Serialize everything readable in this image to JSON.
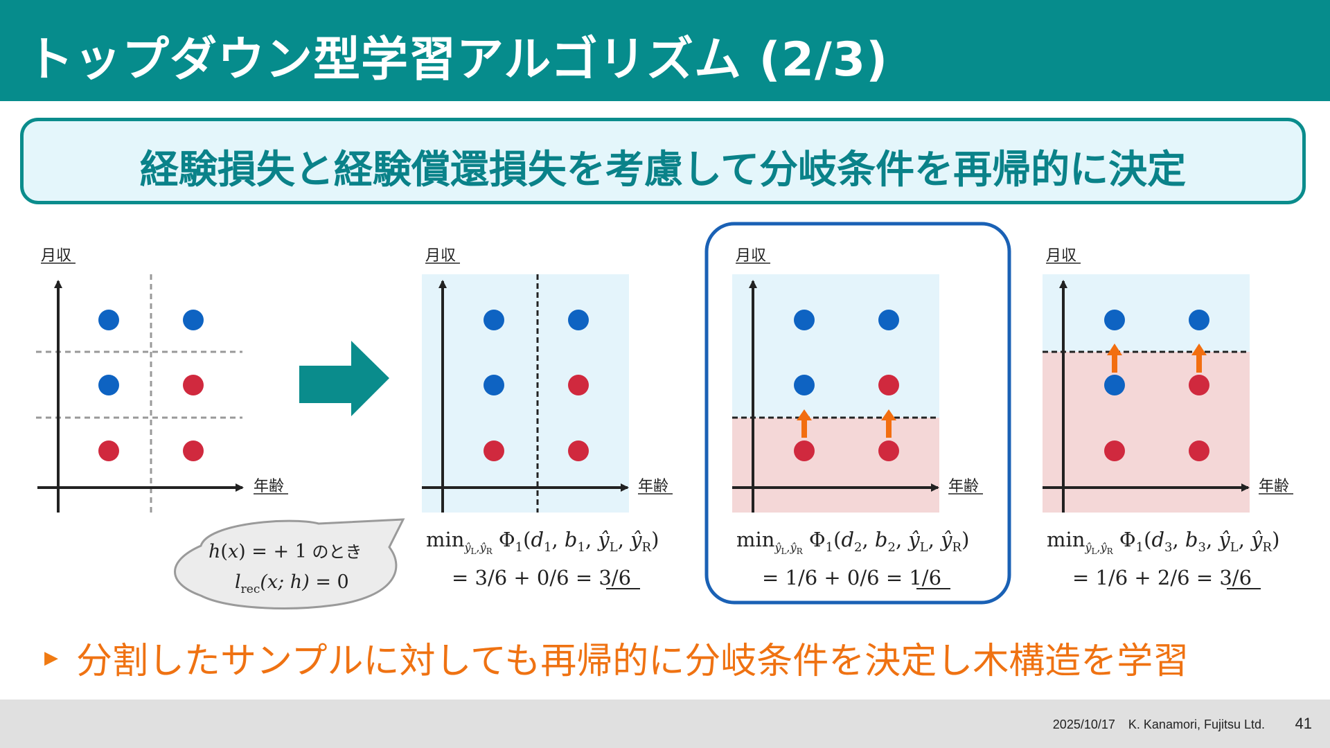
{
  "header": {
    "title": "トップダウン型学習アルゴリズム (2/3)"
  },
  "callout": {
    "text": "経験損失と経験償還損失を考慮して分岐条件を再帰的に決定"
  },
  "diagram": {
    "y_axis_label": "月収",
    "x_axis_label": "年齢",
    "speech_bubble": {
      "line1_h": "h",
      "line1_x": "x",
      "line1_rest": " = + 1",
      "line1_suffix": " のとき",
      "line2_l": "l",
      "line2_sub": "rec",
      "line2_args": "(x; h)",
      "line2_rest": " = 0"
    },
    "panels": [
      {
        "formula_d": "d",
        "formula_b": "b",
        "index": "1",
        "result_prefix": "= 3/6 + 0/6 = ",
        "result_value": "3/6"
      },
      {
        "formula_d": "d",
        "formula_b": "b",
        "index": "2",
        "result_prefix": "= 1/6 + 0/6 = ",
        "result_value": "1/6"
      },
      {
        "formula_d": "d",
        "formula_b": "b",
        "index": "3",
        "result_prefix": "= 1/6 + 2/6 = ",
        "result_value": "3/6"
      }
    ],
    "formula_min": "min",
    "formula_phi": "Φ",
    "formula_yhat": "ŷ",
    "formula_L": "L",
    "formula_R": "R",
    "colors": {
      "blue_point": "#0e63c2",
      "red_point": "#d0293e",
      "arrow": "#f26e10",
      "light_blue_region": "#e4f4fb",
      "light_red_region": "#f4d7d7",
      "highlight_border": "#1a61b5"
    }
  },
  "bullet": {
    "text": "分割したサンプルに対しても再帰的に分岐条件を決定し木構造を学習"
  },
  "footer": {
    "date": "2025/10/17",
    "author": "K. Kanamori,  Fujitsu Ltd.",
    "page": "41"
  }
}
